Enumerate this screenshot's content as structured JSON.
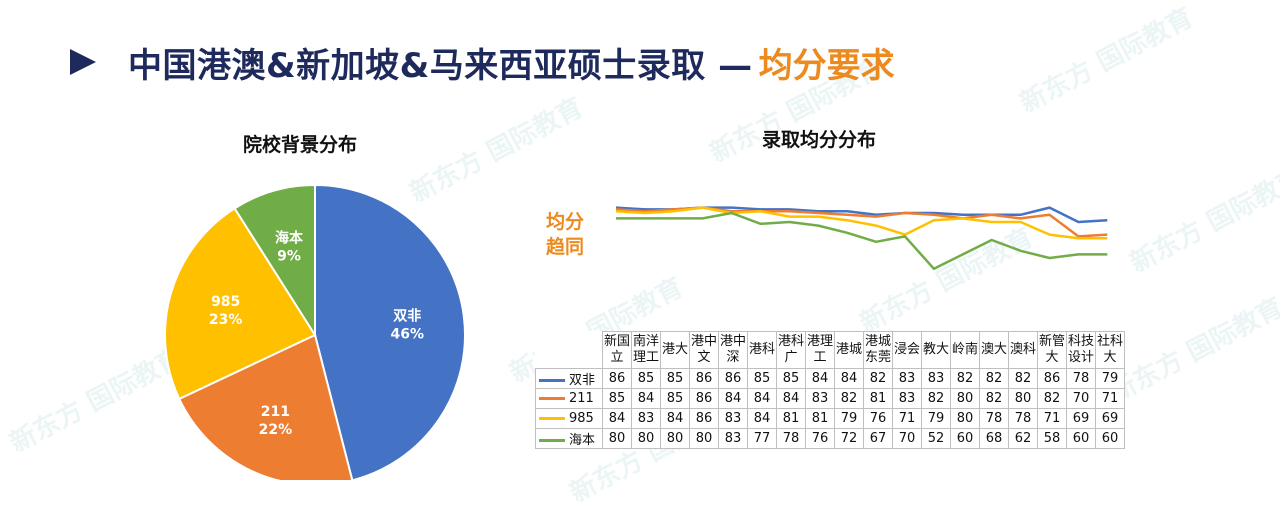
{
  "header": {
    "title": "中国港澳&新加坡&马来西亚硕士录取 —",
    "title_accent": "均分要求"
  },
  "watermark": "新东方 国际教育",
  "pie_chart": {
    "title": "院校背景分布"
  },
  "line_chart": {
    "title": "录取均分分布",
    "side_label_line1": "均分",
    "side_label_line2": "趋同"
  },
  "chart_data": [
    {
      "type": "pie",
      "title": "院校背景分布",
      "slices": [
        {
          "label": "双非",
          "value": 46,
          "display": "46%",
          "color": "#4472c4"
        },
        {
          "label": "211",
          "value": 22,
          "display": "22%",
          "color": "#ed7d31"
        },
        {
          "label": "985",
          "value": 23,
          "display": "23%",
          "color": "#ffc000"
        },
        {
          "label": "海本",
          "value": 9,
          "display": "9%",
          "color": "#70ad47"
        }
      ]
    },
    {
      "type": "line",
      "title": "录取均分分布",
      "categories": [
        "新国立",
        "南洋理工",
        "港大",
        "港中文",
        "港中深",
        "港科",
        "港科广",
        "港理工",
        "港城",
        "港城东莞",
        "浸会",
        "教大",
        "岭南",
        "澳大",
        "澳科",
        "新管大",
        "科技设计",
        "社科大"
      ],
      "category_lines": [
        [
          "新国",
          "立"
        ],
        [
          "南洋",
          "理工"
        ],
        [
          "港大"
        ],
        [
          "港中",
          "文"
        ],
        [
          "港中",
          "深"
        ],
        [
          "港科"
        ],
        [
          "港科",
          "广"
        ],
        [
          "港理",
          "工"
        ],
        [
          "港城"
        ],
        [
          "港城",
          "东莞"
        ],
        [
          "浸会"
        ],
        [
          "教大"
        ],
        [
          "岭南"
        ],
        [
          "澳大"
        ],
        [
          "澳科"
        ],
        [
          "新管",
          "大"
        ],
        [
          "科技",
          "设计"
        ],
        [
          "社科",
          "大"
        ]
      ],
      "series": [
        {
          "name": "双非",
          "color": "#4472c4",
          "values": [
            86,
            85,
            85,
            86,
            86,
            85,
            85,
            84,
            84,
            82,
            83,
            83,
            82,
            82,
            82,
            86,
            78,
            79
          ]
        },
        {
          "name": "211",
          "color": "#ed7d31",
          "values": [
            85,
            84,
            85,
            86,
            84,
            84,
            84,
            83,
            82,
            81,
            83,
            82,
            80,
            82,
            80,
            82,
            70,
            71
          ]
        },
        {
          "name": "985",
          "color": "#ffc000",
          "values": [
            84,
            83,
            84,
            86,
            83,
            84,
            81,
            81,
            79,
            76,
            71,
            79,
            80,
            78,
            78,
            71,
            69,
            69
          ]
        },
        {
          "name": "海本",
          "color": "#70ad47",
          "values": [
            80,
            80,
            80,
            80,
            83,
            77,
            78,
            76,
            72,
            67,
            70,
            52,
            60,
            68,
            62,
            58,
            60,
            60
          ]
        }
      ],
      "legend": "data-table-below",
      "grid": false
    }
  ]
}
